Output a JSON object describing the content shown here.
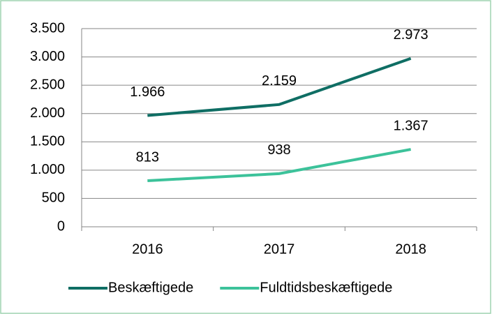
{
  "chart_data": {
    "type": "line",
    "categories": [
      "2016",
      "2017",
      "2018"
    ],
    "series": [
      {
        "name": "Beskæftigede",
        "color": "#0f6e64",
        "values": [
          1966,
          2159,
          2973
        ],
        "value_labels": [
          "1.966",
          "2.159",
          "2.973"
        ]
      },
      {
        "name": "Fuldtidsbeskæftigede",
        "color": "#3cc29a",
        "values": [
          813,
          938,
          1367
        ],
        "value_labels": [
          "813",
          "938",
          "1.367"
        ]
      }
    ],
    "ylim": [
      0,
      3500
    ],
    "yticks": [
      0,
      500,
      {
        "value": 1000,
        "label": "1.000"
      },
      {
        "value": 1500,
        "label": "1.500"
      },
      {
        "value": 2000,
        "label": "2.000"
      },
      {
        "value": 2500,
        "label": "2.500"
      },
      {
        "value": 3000,
        "label": "3.000"
      },
      {
        "value": 3500,
        "label": "3.500"
      }
    ],
    "grid": true,
    "legend": "bottom"
  }
}
